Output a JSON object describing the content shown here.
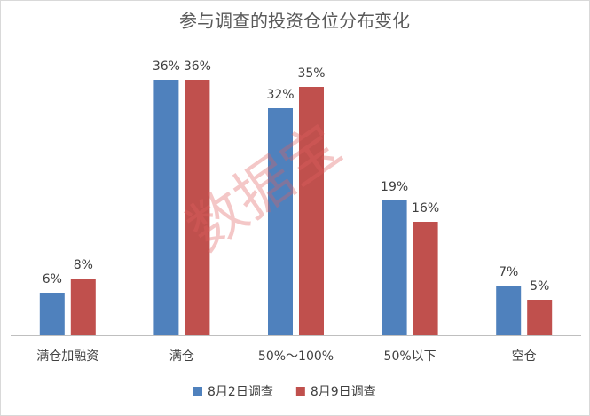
{
  "chart_data": {
    "type": "bar",
    "title": "参与调查的投资仓位分布变化",
    "categories": [
      "满仓加融资",
      "满仓",
      "50%～100%",
      "50%以下",
      "空仓"
    ],
    "series": [
      {
        "name": "8月2日调查",
        "color": "#4f81bd",
        "values": [
          6,
          36,
          32,
          19,
          7
        ],
        "value_labels": [
          "6%",
          "36%",
          "32%",
          "19%",
          "7%"
        ]
      },
      {
        "name": "8月9日调查",
        "color": "#c0504d",
        "values": [
          8,
          36,
          35,
          16,
          5
        ],
        "value_labels": [
          "8%",
          "36%",
          "35%",
          "16%",
          "5%"
        ]
      }
    ],
    "legend": "bottom",
    "watermark": "数据宝"
  }
}
